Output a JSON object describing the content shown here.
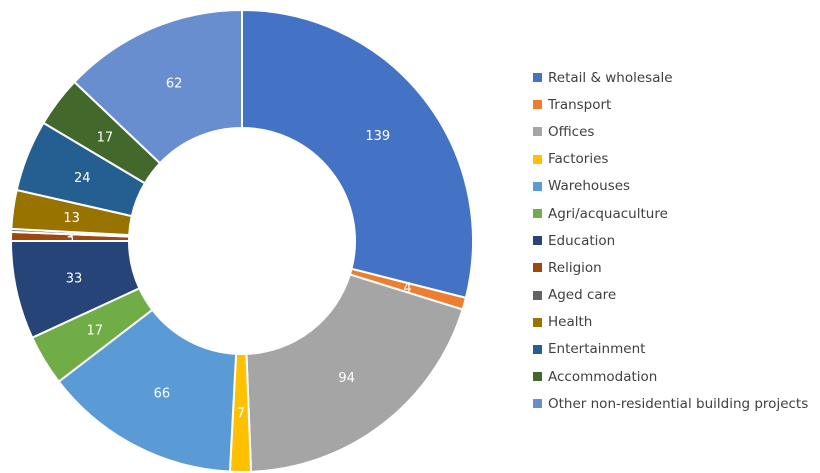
{
  "chart_data": {
    "type": "pie",
    "title": "",
    "legend_position": "right",
    "slices": [
      {
        "label": "Retail & wholesale",
        "value": 139,
        "color": "#4472C4"
      },
      {
        "label": "Transport",
        "value": 4,
        "color": "#ED7D31"
      },
      {
        "label": "Offices",
        "value": 94,
        "color": "#A5A5A5"
      },
      {
        "label": "Factories",
        "value": 7,
        "color": "#FFC000"
      },
      {
        "label": "Warehouses",
        "value": 66,
        "color": "#5B9BD5"
      },
      {
        "label": "Agri/acquaculture",
        "value": 17,
        "color": "#70AD47"
      },
      {
        "label": "Education",
        "value": 33,
        "color": "#264478"
      },
      {
        "label": "Religion",
        "value": 3,
        "color": "#9E480E"
      },
      {
        "label": "Aged care",
        "value": 1,
        "color": "#636363"
      },
      {
        "label": "Health",
        "value": 13,
        "color": "#997300"
      },
      {
        "label": "Entertainment",
        "value": 24,
        "color": "#255E91"
      },
      {
        "label": "Accommodation",
        "value": 17,
        "color": "#43682B"
      },
      {
        "label": "Other non-residential building projects",
        "value": 62,
        "color": "#698ED0"
      }
    ]
  }
}
